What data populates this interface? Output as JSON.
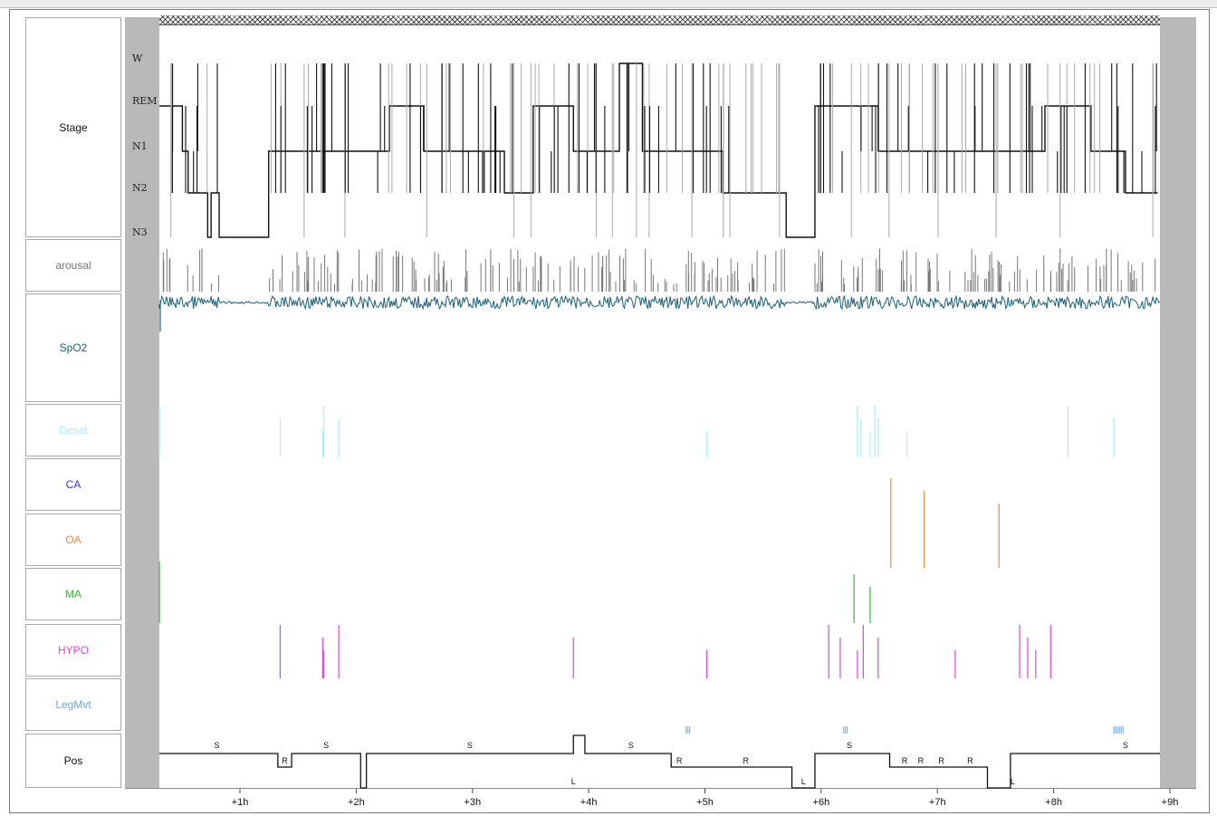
{
  "tracks": {
    "stage": {
      "label": "Stage",
      "color": "#111111"
    },
    "arousal": {
      "label": "arousal",
      "color": "#777777"
    },
    "spo2": {
      "label": "SpO2",
      "color": "#1a5f7a"
    },
    "desat": {
      "label": "Desat",
      "color": "#a8eef4"
    },
    "ca": {
      "label": "CA",
      "color": "#3333dd"
    },
    "oa": {
      "label": "OA",
      "color": "#e8884a"
    },
    "ma": {
      "label": "MA",
      "color": "#33bb33"
    },
    "hypo": {
      "label": "HYPO",
      "color": "#dd44dd"
    },
    "legmvt": {
      "label": "LegMvt",
      "color": "#6ea6d8"
    },
    "pos": {
      "label": "Pos",
      "color": "#111111"
    }
  },
  "chart_data": {
    "type": "line",
    "x_unit": "h",
    "x_range": [
      0.3,
      9.0
    ],
    "x_ticks": [
      "+1h",
      "+2h",
      "+3h",
      "+4h",
      "+5h",
      "+6h",
      "+7h",
      "+8h",
      "+9h"
    ],
    "stage_levels": [
      "W",
      "REM",
      "N1",
      "N2",
      "N3"
    ],
    "stage_segments": [
      [
        0.3,
        0.33,
        "REM"
      ],
      [
        0.33,
        0.5,
        "REM"
      ],
      [
        0.5,
        0.55,
        "N1"
      ],
      [
        0.55,
        0.6,
        "N2"
      ],
      [
        0.6,
        0.72,
        "N2"
      ],
      [
        0.72,
        0.75,
        "N3"
      ],
      [
        0.75,
        0.82,
        "N2"
      ],
      [
        0.82,
        1.25,
        "N3"
      ],
      [
        1.25,
        1.7,
        "N1"
      ],
      [
        1.7,
        2.3,
        "N1"
      ],
      [
        2.3,
        2.6,
        "REM"
      ],
      [
        2.6,
        3.3,
        "N1"
      ],
      [
        3.3,
        3.55,
        "N2"
      ],
      [
        3.55,
        3.9,
        "REM"
      ],
      [
        3.9,
        4.3,
        "N1"
      ],
      [
        4.3,
        4.5,
        "W"
      ],
      [
        4.5,
        5.2,
        "N1"
      ],
      [
        5.2,
        5.4,
        "N2"
      ],
      [
        5.4,
        5.75,
        "N2"
      ],
      [
        5.75,
        6.0,
        "N3"
      ],
      [
        6.0,
        6.3,
        "REM"
      ],
      [
        6.3,
        6.55,
        "REM"
      ],
      [
        6.55,
        7.2,
        "N1"
      ],
      [
        7.2,
        8.0,
        "N1"
      ],
      [
        8.0,
        8.4,
        "REM"
      ],
      [
        8.4,
        8.7,
        "N1"
      ],
      [
        8.7,
        8.98,
        "N2"
      ]
    ],
    "desat_events": [
      0.3,
      1.35,
      1.72,
      1.73,
      1.86,
      5.06,
      6.37,
      6.4,
      6.48,
      6.52,
      6.55,
      6.8,
      8.2,
      8.6
    ],
    "ca_events": [],
    "oa_events": [
      6.66,
      6.95,
      7.6
    ],
    "ma_events": [
      0.3,
      6.34,
      6.48
    ],
    "hypo_events": [
      1.35,
      1.72,
      1.73,
      1.86,
      3.9,
      5.06,
      6.12,
      6.22,
      6.37,
      6.42,
      6.55,
      7.22,
      7.78,
      7.85,
      7.92,
      8.05
    ],
    "legmvt_events": [
      4.88,
      6.25,
      8.6
    ],
    "pos_segments": [
      [
        0.3,
        1.33,
        "S"
      ],
      [
        1.33,
        1.45,
        "R"
      ],
      [
        1.45,
        2.05,
        "S"
      ],
      [
        2.05,
        2.1,
        "L"
      ],
      [
        2.1,
        3.9,
        "S"
      ],
      [
        3.9,
        4.0,
        "W"
      ],
      [
        4.0,
        4.75,
        "S"
      ],
      [
        4.75,
        4.9,
        "R"
      ],
      [
        4.9,
        5.8,
        "R"
      ],
      [
        5.8,
        6.0,
        "L"
      ],
      [
        6.0,
        6.65,
        "S"
      ],
      [
        6.65,
        6.85,
        "R"
      ],
      [
        6.85,
        7.0,
        "R"
      ],
      [
        7.0,
        7.2,
        "R"
      ],
      [
        7.2,
        7.5,
        "R"
      ],
      [
        7.5,
        7.7,
        "L"
      ],
      [
        7.7,
        8.0,
        "S"
      ],
      [
        8.0,
        9.0,
        "S"
      ]
    ]
  }
}
